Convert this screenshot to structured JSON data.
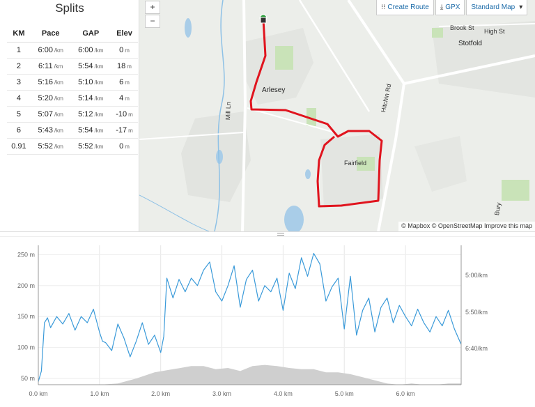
{
  "splits": {
    "title": "Splits",
    "headers": [
      "KM",
      "Pace",
      "GAP",
      "Elev"
    ],
    "rows": [
      {
        "km": "1",
        "pace": "6:00",
        "gap": "6:00",
        "elev": "0"
      },
      {
        "km": "2",
        "pace": "6:11",
        "gap": "5:54",
        "elev": "18"
      },
      {
        "km": "3",
        "pace": "5:16",
        "gap": "5:10",
        "elev": "6"
      },
      {
        "km": "4",
        "pace": "5:20",
        "gap": "5:14",
        "elev": "4"
      },
      {
        "km": "5",
        "pace": "5:07",
        "gap": "5:12",
        "elev": "-10"
      },
      {
        "km": "6",
        "pace": "5:43",
        "gap": "5:54",
        "elev": "-17"
      },
      {
        "km": "0.91",
        "pace": "5:52",
        "gap": "5:52",
        "elev": "0"
      }
    ],
    "pace_unit": "/km",
    "elev_unit": "m"
  },
  "map": {
    "zoom_in": "+",
    "zoom_out": "−",
    "controls": {
      "create_route": "Create Route",
      "gpx": "GPX",
      "map_style": "Standard Map"
    },
    "labels": {
      "arlesey": "Arlesey",
      "stotfold": "Stotfold",
      "fairfield": "Fairfield",
      "brook_st": "Brook St",
      "high_st": "High St",
      "hitchin_rd": "Hitchin Rd",
      "mill_ln": "Mill Ln",
      "bury": "Bury"
    },
    "attribution": "© Mapbox © OpenStreetMap Improve this map",
    "route_color": "#e0141e"
  },
  "chart_data": {
    "type": "area",
    "x_ticks": [
      "0.0 km",
      "1.0 km",
      "2.0 km",
      "3.0 km",
      "4.0 km",
      "5.0 km",
      "6.0 km"
    ],
    "x_tick_values": [
      0,
      1,
      2,
      3,
      4,
      5,
      6
    ],
    "xlim": [
      0,
      6.91
    ],
    "left_axis": {
      "ticks": [
        "250 m",
        "200 m",
        "150 m",
        "100 m",
        "50 m"
      ],
      "values": [
        250,
        200,
        150,
        100,
        50
      ],
      "ylim": [
        40,
        265
      ]
    },
    "right_axis": {
      "ticks": [
        "5:00/km",
        "5:50/km",
        "6:40/km"
      ],
      "values": [
        300,
        350,
        400
      ]
    },
    "series": [
      {
        "name": "",
        "color": "#3a9ad9",
        "x": [
          0,
          0.05,
          0.1,
          0.15,
          0.2,
          0.3,
          0.4,
          0.5,
          0.6,
          0.7,
          0.8,
          0.9,
          1.0,
          1.05,
          1.1,
          1.2,
          1.3,
          1.4,
          1.5,
          1.6,
          1.7,
          1.8,
          1.9,
          2.0,
          2.05,
          2.1,
          2.2,
          2.3,
          2.4,
          2.5,
          2.6,
          2.7,
          2.8,
          2.9,
          3.0,
          3.1,
          3.2,
          3.3,
          3.4,
          3.5,
          3.6,
          3.7,
          3.8,
          3.9,
          4.0,
          4.1,
          4.2,
          4.3,
          4.4,
          4.5,
          4.6,
          4.7,
          4.8,
          4.9,
          5.0,
          5.1,
          5.2,
          5.3,
          5.4,
          5.5,
          5.6,
          5.7,
          5.8,
          5.9,
          6.0,
          6.1,
          6.2,
          6.3,
          6.4,
          6.5,
          6.6,
          6.7,
          6.8,
          6.91
        ],
        "y": [
          45,
          62,
          140,
          148,
          132,
          150,
          138,
          155,
          128,
          150,
          140,
          162,
          125,
          110,
          108,
          95,
          138,
          115,
          85,
          110,
          140,
          105,
          120,
          92,
          118,
          212,
          180,
          210,
          190,
          212,
          200,
          225,
          238,
          190,
          175,
          200,
          232,
          165,
          210,
          225,
          175,
          200,
          190,
          212,
          160,
          220,
          195,
          245,
          215,
          252,
          235,
          175,
          198,
          212,
          130,
          215,
          120,
          160,
          180,
          125,
          165,
          180,
          140,
          168,
          150,
          135,
          162,
          140,
          125,
          150,
          135,
          160,
          130,
          105
        ]
      },
      {
        "name": "",
        "color": "#cfcfcf",
        "x": [
          0,
          0.5,
          1.0,
          1.3,
          1.6,
          1.9,
          2.2,
          2.5,
          2.7,
          2.9,
          3.1,
          3.3,
          3.5,
          3.7,
          3.9,
          4.1,
          4.3,
          4.5,
          4.7,
          4.9,
          5.1,
          5.3,
          5.5,
          5.7,
          5.9,
          6.1,
          6.3,
          6.5,
          6.7,
          6.91
        ],
        "y": [
          40,
          40,
          40,
          42,
          50,
          60,
          65,
          70,
          70,
          65,
          67,
          62,
          70,
          72,
          70,
          67,
          65,
          65,
          60,
          60,
          57,
          52,
          47,
          42,
          40,
          42,
          40,
          40,
          42,
          42
        ]
      }
    ]
  }
}
